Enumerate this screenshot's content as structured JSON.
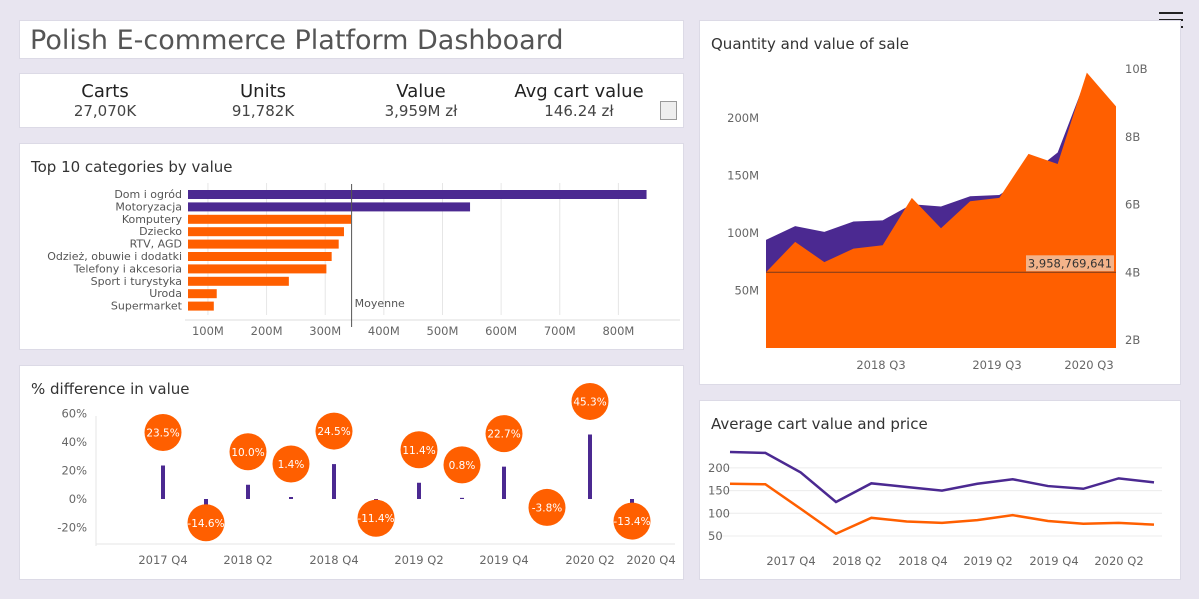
{
  "header": {
    "title": "Polish E-commerce Platform Dashboard"
  },
  "kpis": [
    {
      "label": "Carts",
      "value": "27,070K"
    },
    {
      "label": "Units",
      "value": "91,782K"
    },
    {
      "label": "Value",
      "value": "3,959M zł"
    },
    {
      "label": "Avg cart value",
      "value": "146.24 zł"
    }
  ],
  "colors": {
    "purple": "#4b2991",
    "orange": "#ff5f00",
    "grid": "#e6e6e6",
    "tick": "#666666"
  },
  "icons": {
    "menu": "hamburger-menu-icon"
  },
  "panels": {
    "bar": {
      "title": "Top 10 categories by value"
    },
    "diff": {
      "title": "% difference in value"
    },
    "qty": {
      "title": "Quantity and value of sale"
    },
    "avg": {
      "title": "Average cart value and price"
    }
  },
  "chart_data": [
    {
      "id": "top-categories",
      "type": "bar",
      "orientation": "horizontal",
      "title": "Top 10 categories by value",
      "categories": [
        "Dom i ogród",
        "Motoryzacja",
        "Komputery",
        "Dziecko",
        "RTV, AGD",
        "Odzież, obuwie i dodatki",
        "Telefony i akcesoria",
        "Sport i turystyka",
        "Uroda",
        "Supermarket"
      ],
      "values": [
        848,
        547,
        344,
        332,
        323,
        311,
        302,
        238,
        115,
        110
      ],
      "value_unit": "M",
      "highlight": [
        "purple",
        "purple",
        "orange",
        "orange",
        "orange",
        "orange",
        "orange",
        "orange",
        "orange",
        "orange"
      ],
      "reference_line": {
        "label": "Moyenne",
        "value": 345
      },
      "xticks": [
        "100M",
        "200M",
        "300M",
        "400M",
        "500M",
        "600M",
        "700M",
        "800M"
      ],
      "xlim": [
        66,
        888
      ],
      "grid": "vertical"
    },
    {
      "id": "pct-difference",
      "type": "scatter",
      "title": "% difference in value",
      "values": [
        23.5,
        -14.6,
        10.0,
        1.4,
        24.5,
        -11.4,
        11.4,
        0.8,
        22.7,
        -3.8,
        45.3,
        -13.4
      ],
      "labels": [
        "23.5%",
        "-14.6%",
        "10.0%",
        "1.4%",
        "24.5%",
        "-11.4%",
        "11.4%",
        "0.8%",
        "22.7%",
        "-3.8%",
        "45.3%",
        "-13.4%"
      ],
      "xticks": [
        "2017 Q4",
        "2018 Q2",
        "2018 Q4",
        "2019 Q2",
        "2019 Q4",
        "2020 Q2",
        "2020 Q4"
      ],
      "yticks": [
        "60%",
        "40%",
        "20%",
        "0%",
        "-20%"
      ],
      "ylim": [
        -30,
        65
      ]
    },
    {
      "id": "quantity-value",
      "type": "area",
      "title": "Quantity and value of sale",
      "series": [
        {
          "axis": "left",
          "values": [
            94,
            106,
            101,
            110,
            111,
            125,
            123,
            132,
            133,
            150,
            170,
            236,
            197
          ]
        },
        {
          "axis": "right",
          "values": [
            4.0,
            4.9,
            4.3,
            4.7,
            4.8,
            6.2,
            5.3,
            6.1,
            6.2,
            7.5,
            7.2,
            9.9,
            8.9
          ]
        }
      ],
      "reference_line": {
        "label": "3,958,769,641",
        "value": 4.0
      },
      "left_yticks": [
        "200M",
        "150M",
        "100M",
        "50M"
      ],
      "left_ylim": [
        0,
        250
      ],
      "right_yticks": [
        "10B",
        "8B",
        "6B",
        "4B",
        "2B"
      ],
      "right_ylim": [
        1.8,
        10
      ],
      "xticks": [
        "2018 Q3",
        "2019 Q3",
        "2020 Q3"
      ]
    },
    {
      "id": "avg-cart-price",
      "type": "line",
      "title": "Average cart value and price",
      "series": [
        {
          "values": [
            235,
            233,
            190,
            125,
            166,
            158,
            150,
            165,
            175,
            160,
            154,
            177,
            168
          ]
        },
        {
          "values": [
            165,
            164,
            110,
            55,
            90,
            82,
            79,
            85,
            96,
            83,
            77,
            79,
            75
          ]
        }
      ],
      "yticks": [
        "200",
        "150",
        "100",
        "50"
      ],
      "ylim": [
        30,
        250
      ],
      "xticks": [
        "2017 Q4",
        "2018 Q2",
        "2018 Q4",
        "2019 Q2",
        "2019 Q4",
        "2020 Q2"
      ]
    }
  ]
}
